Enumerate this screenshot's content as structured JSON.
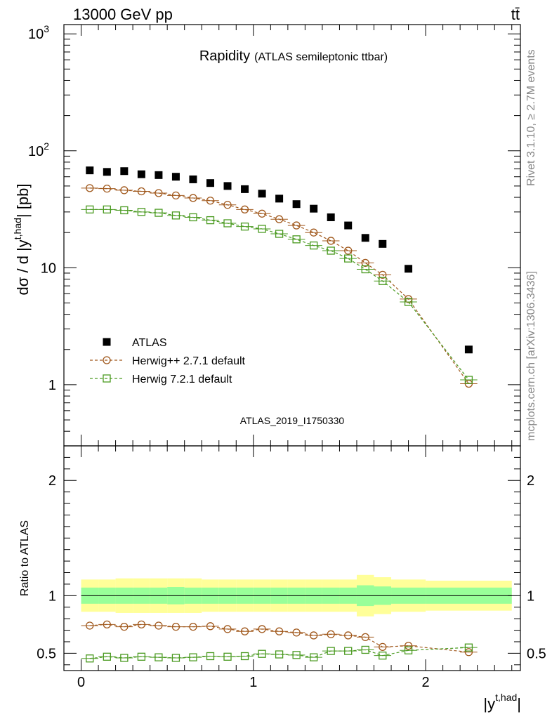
{
  "header": {
    "left": "13000 GeV pp",
    "right": "tt̄"
  },
  "side_labels": {
    "rivet": "Rivet 3.1.10, ≥ 2.7M events",
    "mcplots": "mcplots.cern.ch [arXiv:1306.3436]"
  },
  "chart_data": [
    {
      "type": "scatter",
      "panel": "main",
      "title": "Rapidity",
      "subtitle": "(ATLAS semileptonic ttbar)",
      "ylabel": "dσ / d |y",
      "ylabel_sup": "t,had",
      "ylabel_tail": "| [pb]",
      "yscale": "log",
      "ylim": [
        0.3,
        1200
      ],
      "xlim": [
        -0.1,
        2.55
      ],
      "yticks": [
        {
          "value": 1,
          "label": "1"
        },
        {
          "value": 10,
          "label": "10"
        },
        {
          "value": 100,
          "label": "10",
          "sup": "2"
        },
        {
          "value": 1000,
          "label": "10",
          "sup": "3"
        }
      ],
      "watermark": "ATLAS_2019_I1750330",
      "legend_position": "lower-left",
      "x": [
        0.05,
        0.15,
        0.25,
        0.35,
        0.45,
        0.55,
        0.65,
        0.75,
        0.85,
        0.95,
        1.05,
        1.15,
        1.25,
        1.35,
        1.45,
        1.55,
        1.65,
        1.75,
        1.9,
        2.25
      ],
      "series": [
        {
          "name": "ATLAS",
          "color": "#000000",
          "marker": "square",
          "values": [
            68,
            66,
            67,
            63,
            62,
            60,
            57,
            53,
            50,
            47,
            43,
            39,
            35,
            32,
            27,
            23,
            18,
            16,
            9.8,
            2.0
          ]
        },
        {
          "name": "Herwig++ 2.7.1 default",
          "color": "#a0581c",
          "marker": "circle",
          "values": [
            48,
            47.5,
            46,
            45,
            43.5,
            41.5,
            39.5,
            37.5,
            34.5,
            31.5,
            29,
            26,
            23,
            20,
            17,
            14,
            11,
            8.7,
            5.4,
            1.02
          ]
        },
        {
          "name": "Herwig 7.2.1 default",
          "color": "#4a9a20",
          "marker": "square-open",
          "values": [
            31.5,
            31.5,
            31,
            30,
            29.5,
            28,
            27,
            25.5,
            24,
            22.5,
            21.5,
            19.5,
            17.5,
            15.5,
            14,
            12,
            9.7,
            7.7,
            5.1,
            1.1
          ]
        }
      ]
    },
    {
      "type": "line",
      "panel": "ratio",
      "ylabel": "Ratio to ATLAS",
      "xlabel": "|y",
      "xlabel_sup": "t,had",
      "xlabel_tail": "|",
      "ylim": [
        0.35,
        2.3
      ],
      "xlim": [
        -0.1,
        2.55
      ],
      "xticks": [
        {
          "value": 0,
          "label": "0"
        },
        {
          "value": 1,
          "label": "1"
        },
        {
          "value": 2,
          "label": "2"
        }
      ],
      "yticks": [
        {
          "value": 0.5,
          "label": "0.5"
        },
        {
          "value": 1,
          "label": "1"
        },
        {
          "value": 2,
          "label": "2"
        }
      ],
      "bins": [
        {
          "lo": 0.0,
          "hi": 0.1,
          "stat": 0.07,
          "tot": 0.14
        },
        {
          "lo": 0.1,
          "hi": 0.2,
          "stat": 0.07,
          "tot": 0.14
        },
        {
          "lo": 0.2,
          "hi": 0.3,
          "stat": 0.07,
          "tot": 0.15
        },
        {
          "lo": 0.3,
          "hi": 0.4,
          "stat": 0.07,
          "tot": 0.15
        },
        {
          "lo": 0.4,
          "hi": 0.5,
          "stat": 0.07,
          "tot": 0.15
        },
        {
          "lo": 0.5,
          "hi": 0.6,
          "stat": 0.075,
          "tot": 0.15
        },
        {
          "lo": 0.6,
          "hi": 0.7,
          "stat": 0.07,
          "tot": 0.15
        },
        {
          "lo": 0.7,
          "hi": 0.8,
          "stat": 0.07,
          "tot": 0.14
        },
        {
          "lo": 0.8,
          "hi": 0.9,
          "stat": 0.07,
          "tot": 0.14
        },
        {
          "lo": 0.9,
          "hi": 1.0,
          "stat": 0.07,
          "tot": 0.14
        },
        {
          "lo": 1.0,
          "hi": 1.1,
          "stat": 0.07,
          "tot": 0.14
        },
        {
          "lo": 1.1,
          "hi": 1.2,
          "stat": 0.07,
          "tot": 0.14
        },
        {
          "lo": 1.2,
          "hi": 1.3,
          "stat": 0.07,
          "tot": 0.14
        },
        {
          "lo": 1.3,
          "hi": 1.4,
          "stat": 0.07,
          "tot": 0.14
        },
        {
          "lo": 1.4,
          "hi": 1.5,
          "stat": 0.07,
          "tot": 0.14
        },
        {
          "lo": 1.5,
          "hi": 1.6,
          "stat": 0.07,
          "tot": 0.14
        },
        {
          "lo": 1.6,
          "hi": 1.7,
          "stat": 0.09,
          "tot": 0.18
        },
        {
          "lo": 1.7,
          "hi": 1.8,
          "stat": 0.08,
          "tot": 0.16
        },
        {
          "lo": 1.8,
          "hi": 2.0,
          "stat": 0.07,
          "tot": 0.14
        },
        {
          "lo": 2.0,
          "hi": 2.5,
          "stat": 0.07,
          "tot": 0.13
        }
      ],
      "band_colors": {
        "total": "#ffff99",
        "stat": "#99ff99"
      },
      "x": [
        0.05,
        0.15,
        0.25,
        0.35,
        0.45,
        0.55,
        0.65,
        0.75,
        0.85,
        0.95,
        1.05,
        1.15,
        1.25,
        1.35,
        1.45,
        1.55,
        1.65,
        1.75,
        1.9,
        2.25
      ],
      "series": [
        {
          "name": "Herwig++ 2.7.1 default",
          "color": "#a0581c",
          "marker": "circle",
          "values": [
            0.74,
            0.75,
            0.73,
            0.75,
            0.74,
            0.73,
            0.73,
            0.735,
            0.71,
            0.69,
            0.71,
            0.69,
            0.68,
            0.655,
            0.665,
            0.655,
            0.64,
            0.555,
            0.565,
            0.51
          ]
        },
        {
          "name": "Herwig 7.2.1 default",
          "color": "#4a9a20",
          "marker": "square-open",
          "values": [
            0.455,
            0.47,
            0.46,
            0.47,
            0.465,
            0.46,
            0.465,
            0.475,
            0.47,
            0.475,
            0.495,
            0.49,
            0.485,
            0.465,
            0.52,
            0.52,
            0.53,
            0.48,
            0.525,
            0.55
          ]
        }
      ]
    }
  ]
}
